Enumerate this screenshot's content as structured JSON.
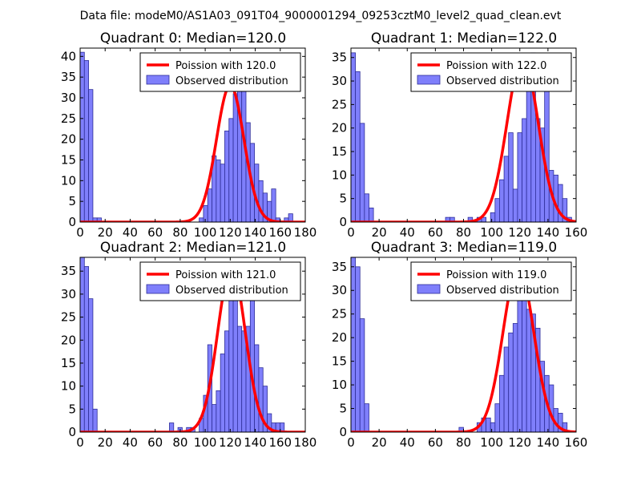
{
  "figure": {
    "suptitle": "Data file: modeM0/AS1A03_091T04_9000001294_09253cztM0_level2_quad_clean.evt",
    "colors": {
      "bar_fill": "#7f7ffb",
      "bar_edge": "#2e2e99",
      "curve": "#ff0000",
      "axes": "#000000",
      "background": "#ffffff"
    }
  },
  "chart_data": [
    {
      "type": "bar",
      "title": "Quadrant 0: Median=120.0",
      "xlim": [
        0,
        180
      ],
      "ylim": [
        0,
        42
      ],
      "xticks": [
        0,
        20,
        40,
        60,
        80,
        100,
        120,
        140,
        160,
        180
      ],
      "yticks": [
        0,
        5,
        10,
        15,
        20,
        25,
        30,
        35,
        40
      ],
      "bin_width": 3.4,
      "bins": [
        [
          0,
          41
        ],
        [
          3.4,
          39
        ],
        [
          6.8,
          32
        ],
        [
          10.2,
          1
        ],
        [
          13.6,
          1
        ],
        [
          95.2,
          1
        ],
        [
          98.6,
          4
        ],
        [
          102,
          8
        ],
        [
          105.4,
          16
        ],
        [
          108.8,
          15
        ],
        [
          112.2,
          14
        ],
        [
          115.6,
          22
        ],
        [
          119,
          25
        ],
        [
          122.4,
          31
        ],
        [
          125.8,
          36
        ],
        [
          129.2,
          35
        ],
        [
          132.6,
          24
        ],
        [
          136,
          19
        ],
        [
          139.4,
          14
        ],
        [
          142.8,
          10
        ],
        [
          146.2,
          7
        ],
        [
          149.6,
          5
        ],
        [
          153,
          8
        ],
        [
          156.4,
          1
        ],
        [
          159.8,
          0
        ],
        [
          163.2,
          1
        ],
        [
          166.6,
          2
        ]
      ],
      "curve": {
        "label": "Poission with 120.0",
        "mean": 120.0,
        "peak": 33
      },
      "legend": {
        "curve": "Poission with 120.0",
        "bars": "Observed distribution"
      }
    },
    {
      "type": "bar",
      "title": "Quadrant 1: Median=122.0",
      "xlim": [
        0,
        160
      ],
      "ylim": [
        0,
        37
      ],
      "xticks": [
        0,
        20,
        40,
        60,
        80,
        100,
        120,
        140,
        160
      ],
      "yticks": [
        0,
        5,
        10,
        15,
        20,
        25,
        30,
        35
      ],
      "bin_width": 3.2,
      "bins": [
        [
          0,
          36
        ],
        [
          3.2,
          32
        ],
        [
          6.4,
          21
        ],
        [
          9.6,
          6
        ],
        [
          12.8,
          3
        ],
        [
          67.2,
          1
        ],
        [
          70.4,
          1
        ],
        [
          83.2,
          1
        ],
        [
          89.6,
          1
        ],
        [
          92.8,
          1
        ],
        [
          99.2,
          2
        ],
        [
          102.4,
          5
        ],
        [
          105.6,
          9
        ],
        [
          108.8,
          14
        ],
        [
          112,
          19
        ],
        [
          115.2,
          7
        ],
        [
          118.4,
          19
        ],
        [
          121.6,
          22
        ],
        [
          124.8,
          32
        ],
        [
          128,
          36
        ],
        [
          131.2,
          22
        ],
        [
          134.4,
          20
        ],
        [
          137.6,
          28
        ],
        [
          140.8,
          11
        ],
        [
          144,
          10
        ],
        [
          147.2,
          8
        ],
        [
          150.4,
          5
        ],
        [
          153.6,
          1
        ]
      ],
      "curve": {
        "label": "Poission with 122.0",
        "mean": 122.0,
        "peak": 35
      },
      "legend": {
        "curve": "Poission with 122.0",
        "bars": "Observed distribution"
      }
    },
    {
      "type": "bar",
      "title": "Quadrant 2: Median=121.0",
      "xlim": [
        0,
        180
      ],
      "ylim": [
        0,
        38
      ],
      "xticks": [
        0,
        20,
        40,
        60,
        80,
        100,
        120,
        140,
        160,
        180
      ],
      "yticks": [
        0,
        5,
        10,
        15,
        20,
        25,
        30,
        35
      ],
      "bin_width": 3.4,
      "bins": [
        [
          0,
          38
        ],
        [
          3.4,
          36
        ],
        [
          6.8,
          29
        ],
        [
          10.2,
          5
        ],
        [
          71.4,
          2
        ],
        [
          78.2,
          1
        ],
        [
          85,
          1
        ],
        [
          88.4,
          1
        ],
        [
          95.2,
          3
        ],
        [
          98.6,
          8
        ],
        [
          102,
          19
        ],
        [
          105.4,
          6
        ],
        [
          108.8,
          9
        ],
        [
          112.2,
          17
        ],
        [
          115.6,
          22
        ],
        [
          119,
          31
        ],
        [
          122.4,
          31
        ],
        [
          125.8,
          23
        ],
        [
          129.2,
          22
        ],
        [
          132.6,
          23
        ],
        [
          136,
          32
        ],
        [
          139.4,
          19
        ],
        [
          142.8,
          14
        ],
        [
          146.2,
          10
        ],
        [
          149.6,
          4
        ],
        [
          153,
          2
        ],
        [
          156.4,
          2
        ],
        [
          159.8,
          2
        ]
      ],
      "curve": {
        "label": "Poission with 121.0",
        "mean": 121.0,
        "peak": 36
      },
      "legend": {
        "curve": "Poission with 121.0",
        "bars": "Observed distribution"
      }
    },
    {
      "type": "bar",
      "title": "Quadrant 3: Median=119.0",
      "xlim": [
        0,
        160
      ],
      "ylim": [
        0,
        37
      ],
      "xticks": [
        0,
        20,
        40,
        60,
        80,
        100,
        120,
        140,
        160
      ],
      "yticks": [
        0,
        5,
        10,
        15,
        20,
        25,
        30,
        35
      ],
      "bin_width": 3.2,
      "bins": [
        [
          0,
          37
        ],
        [
          3.2,
          35
        ],
        [
          6.4,
          24
        ],
        [
          9.6,
          6
        ],
        [
          76.8,
          1
        ],
        [
          89.6,
          2
        ],
        [
          92.8,
          3
        ],
        [
          96,
          3
        ],
        [
          99.2,
          2
        ],
        [
          102.4,
          6
        ],
        [
          105.6,
          12
        ],
        [
          108.8,
          18
        ],
        [
          112,
          21
        ],
        [
          115.2,
          23
        ],
        [
          118.4,
          31
        ],
        [
          121.6,
          30
        ],
        [
          124.8,
          26
        ],
        [
          128,
          25
        ],
        [
          131.2,
          22
        ],
        [
          134.4,
          15
        ],
        [
          137.6,
          12
        ],
        [
          140.8,
          10
        ],
        [
          144,
          5
        ],
        [
          147.2,
          4
        ],
        [
          150.4,
          2
        ]
      ],
      "curve": {
        "label": "Poission with 119.0",
        "mean": 119.0,
        "peak": 35
      },
      "legend": {
        "curve": "Poission with 119.0",
        "bars": "Observed distribution"
      }
    }
  ]
}
